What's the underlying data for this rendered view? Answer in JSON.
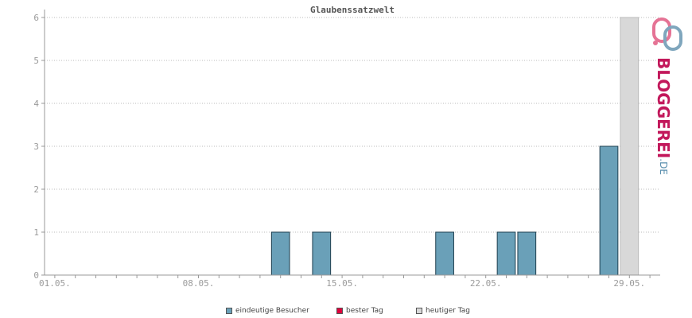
{
  "chart_data": {
    "type": "bar",
    "title": "Glaubenssatzwelt",
    "y_ticks": [
      "0",
      "1",
      "2",
      "3",
      "4",
      "5",
      "6"
    ],
    "ylim": [
      0,
      6
    ],
    "x_tick_labels": [
      "01.05.",
      "08.05.",
      "15.05.",
      "22.05.",
      "29.05."
    ],
    "days": [
      "01.05.",
      "02.05.",
      "03.05.",
      "04.05.",
      "05.05.",
      "06.05.",
      "07.05.",
      "08.05.",
      "09.05.",
      "10.05.",
      "11.05.",
      "12.05.",
      "13.05.",
      "14.05.",
      "15.05.",
      "16.05.",
      "17.05.",
      "18.05.",
      "19.05.",
      "20.05.",
      "21.05.",
      "22.05.",
      "23.05.",
      "24.05.",
      "25.05.",
      "26.05.",
      "27.05.",
      "28.05.",
      "29.05.",
      "30.05."
    ],
    "series": [
      {
        "name": "eindeutige Besucher",
        "color": "#6aa0b8",
        "values": [
          0,
          0,
          0,
          0,
          0,
          0,
          0,
          0,
          0,
          0,
          0,
          1,
          0,
          1,
          0,
          0,
          0,
          0,
          0,
          1,
          0,
          0,
          1,
          1,
          0,
          0,
          0,
          3,
          0,
          0
        ]
      },
      {
        "name": "heutiger Tag",
        "color": "#d8d8d8",
        "values": [
          0,
          0,
          0,
          0,
          0,
          0,
          0,
          0,
          0,
          0,
          0,
          0,
          0,
          0,
          0,
          0,
          0,
          0,
          0,
          0,
          0,
          0,
          0,
          0,
          0,
          0,
          0,
          0,
          6,
          0
        ]
      }
    ],
    "grid": true,
    "legend_position": "bottom"
  },
  "legend": [
    {
      "label": "eindeutige Besucher",
      "color": "#6aa0b8"
    },
    {
      "label": "bester Tag",
      "color": "#e0003c"
    },
    {
      "label": "heutiger Tag",
      "color": "#d8d8d8"
    }
  ],
  "logo": {
    "main": "BLOGGEREI",
    "suffix": ".DE"
  }
}
